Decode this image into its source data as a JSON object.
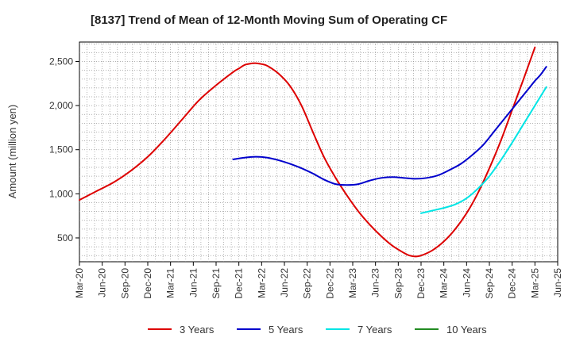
{
  "chart_data": {
    "type": "line",
    "title": "[8137]  Trend of Mean of 12-Month Moving Sum of Operating CF",
    "xlabel": "",
    "ylabel": "Amount (million yen)",
    "ylim": [
      230,
      2720
    ],
    "y_ticks": [
      500,
      1000,
      1500,
      2000,
      2500
    ],
    "y_tick_labels": [
      "500",
      "1,000",
      "1,500",
      "2,000",
      "2,500"
    ],
    "x_ticks": [
      "Mar-20",
      "Jun-20",
      "Sep-20",
      "Dec-20",
      "Mar-21",
      "Jun-21",
      "Sep-21",
      "Dec-21",
      "Mar-22",
      "Jun-22",
      "Sep-22",
      "Dec-22",
      "Mar-23",
      "Jun-23",
      "Sep-23",
      "Dec-23",
      "Mar-24",
      "Jun-24",
      "Sep-24",
      "Dec-24",
      "Mar-25",
      "Jun-25"
    ],
    "x_range_months": [
      0,
      63
    ],
    "grid": true,
    "legend_position": "bottom",
    "series": [
      {
        "name": "3 Years",
        "color": "#dd0000",
        "points": [
          [
            0,
            930
          ],
          [
            3,
            1030
          ],
          [
            6,
            1130
          ],
          [
            9,
            1260
          ],
          [
            12,
            1420
          ],
          [
            15,
            1620
          ],
          [
            18,
            1840
          ],
          [
            21,
            2060
          ],
          [
            24,
            2230
          ],
          [
            27,
            2380
          ],
          [
            28,
            2420
          ],
          [
            29,
            2460
          ],
          [
            30,
            2475
          ],
          [
            31,
            2480
          ],
          [
            32,
            2470
          ],
          [
            33,
            2450
          ],
          [
            35,
            2360
          ],
          [
            37,
            2220
          ],
          [
            39,
            2000
          ],
          [
            41,
            1700
          ],
          [
            43,
            1410
          ],
          [
            45,
            1180
          ],
          [
            47,
            980
          ],
          [
            49,
            800
          ],
          [
            51,
            650
          ],
          [
            53,
            520
          ],
          [
            55,
            410
          ],
          [
            57,
            330
          ],
          [
            58,
            300
          ],
          [
            59,
            290
          ],
          [
            60,
            300
          ],
          [
            62,
            360
          ],
          [
            64,
            460
          ],
          [
            66,
            600
          ],
          [
            68,
            780
          ],
          [
            70,
            1010
          ],
          [
            72,
            1290
          ],
          [
            74,
            1600
          ],
          [
            76,
            1950
          ],
          [
            78,
            2300
          ],
          [
            80,
            2660
          ]
        ]
      },
      {
        "name": "5 Years",
        "color": "#0000cc",
        "points": [
          [
            27,
            1390
          ],
          [
            29,
            1410
          ],
          [
            31,
            1420
          ],
          [
            33,
            1410
          ],
          [
            35,
            1380
          ],
          [
            37,
            1340
          ],
          [
            39,
            1290
          ],
          [
            41,
            1230
          ],
          [
            43,
            1160
          ],
          [
            45,
            1110
          ],
          [
            47,
            1100
          ],
          [
            49,
            1110
          ],
          [
            51,
            1150
          ],
          [
            53,
            1180
          ],
          [
            55,
            1190
          ],
          [
            57,
            1180
          ],
          [
            59,
            1170
          ],
          [
            61,
            1180
          ],
          [
            63,
            1210
          ],
          [
            65,
            1270
          ],
          [
            67,
            1340
          ],
          [
            69,
            1440
          ],
          [
            71,
            1560
          ],
          [
            73,
            1720
          ],
          [
            75,
            1880
          ],
          [
            77,
            2040
          ],
          [
            79,
            2200
          ],
          [
            80,
            2280
          ],
          [
            81,
            2350
          ],
          [
            82,
            2440
          ]
        ]
      },
      {
        "name": "7 Years",
        "color": "#00e5e5",
        "points": [
          [
            60,
            780
          ],
          [
            62,
            810
          ],
          [
            64,
            840
          ],
          [
            66,
            880
          ],
          [
            68,
            950
          ],
          [
            70,
            1060
          ],
          [
            72,
            1200
          ],
          [
            74,
            1380
          ],
          [
            76,
            1580
          ],
          [
            78,
            1790
          ],
          [
            80,
            2000
          ],
          [
            82,
            2210
          ]
        ]
      },
      {
        "name": "10 Years",
        "color": "#228b22",
        "points": []
      }
    ]
  }
}
